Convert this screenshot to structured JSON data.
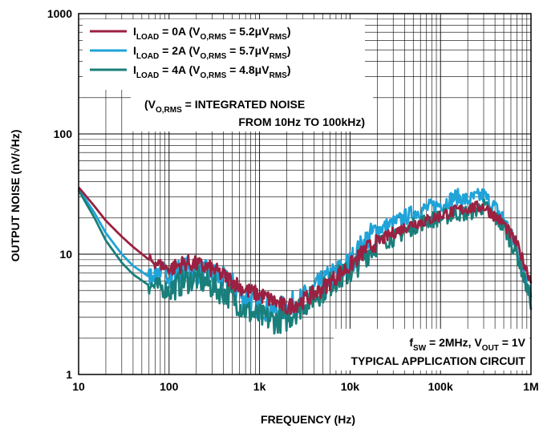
{
  "chart_data": {
    "type": "line",
    "title": "",
    "xlabel": "FREQUENCY (Hz)",
    "ylabel": "OUTPUT NOISE (nV/√Hz)",
    "x_scale": "log",
    "y_scale": "log",
    "xlim": [
      10,
      1000000
    ],
    "ylim": [
      1,
      1000
    ],
    "grid": true,
    "x_ticks": [
      "10",
      "100",
      "1k",
      "10k",
      "100k",
      "1M"
    ],
    "y_ticks": [
      "1",
      "10",
      "100",
      "1000"
    ],
    "legend_position": "top-left",
    "legend": [
      {
        "name": "I_LOAD = 0A (V_O,RMS = 5.2μV_RMS)",
        "color": "#9b2041",
        "sub": [
          [
            "I",
            "LOAD"
          ],
          [
            " = 0A (V",
            ""
          ],
          [
            "O,RMS",
            ""
          ],
          [
            " = 5.2μV",
            ""
          ],
          [
            "RMS",
            ""
          ],
          [
            ")",
            ""
          ]
        ]
      },
      {
        "name": "I_LOAD = 2A (V_O,RMS = 5.7μV_RMS)",
        "color": "#1fa3d8"
      },
      {
        "name": "I_LOAD = 4A (V_O,RMS = 4.8μV_RMS)",
        "color": "#1a7f7a"
      }
    ],
    "annotation_noise_line1": "(V",
    "annotation_noise_sub": "O,RMS",
    "annotation_noise_line1b": " = INTEGRATED NOISE",
    "annotation_noise_line2": "FROM 10Hz TO 100kHz)",
    "annotation_cond_line1_f": "f",
    "annotation_cond_line1_sw": "SW",
    "annotation_cond_line1_mid": " = 2MHz, V",
    "annotation_cond_line1_out": "OUT",
    "annotation_cond_line1_end": " = 1V",
    "annotation_cond_line2": "TYPICAL APPLICATION CIRCUIT",
    "series": [
      {
        "name": "I_LOAD = 0A",
        "color": "#9b2041",
        "x": [
          10,
          15,
          20,
          30,
          40,
          60,
          80,
          100,
          150,
          200,
          300,
          500,
          700,
          1000,
          1500,
          2000,
          3000,
          5000,
          7000,
          10000,
          15000,
          20000,
          30000,
          50000,
          70000,
          100000,
          150000,
          200000,
          300000,
          500000,
          700000,
          1000000
        ],
        "y": [
          36,
          25,
          19,
          14,
          11.5,
          9,
          8.2,
          7.5,
          8.5,
          8.2,
          7.5,
          6,
          5,
          4.6,
          4,
          3.6,
          4.1,
          5.2,
          6.5,
          8,
          11,
          12.5,
          15,
          18,
          19,
          21,
          23,
          24,
          25,
          18,
          12,
          6
        ]
      },
      {
        "name": "I_LOAD = 2A",
        "color": "#1fa3d8",
        "x": [
          10,
          15,
          20,
          30,
          40,
          60,
          80,
          100,
          150,
          200,
          300,
          500,
          700,
          1000,
          1500,
          2000,
          3000,
          5000,
          7000,
          10000,
          15000,
          20000,
          30000,
          50000,
          70000,
          100000,
          150000,
          200000,
          300000,
          500000,
          700000,
          1000000
        ],
        "y": [
          35,
          22,
          15,
          10,
          8,
          6.5,
          7.5,
          6.8,
          7.5,
          7.2,
          6.8,
          5.5,
          4.3,
          3.7,
          3.4,
          3.6,
          4.2,
          5.8,
          7,
          8.5,
          13,
          16,
          18,
          22,
          24,
          26,
          30,
          28,
          31,
          20,
          11,
          5
        ]
      },
      {
        "name": "I_LOAD = 4A",
        "color": "#1a7f7a",
        "x": [
          10,
          15,
          20,
          30,
          40,
          60,
          80,
          100,
          150,
          200,
          300,
          500,
          700,
          1000,
          1500,
          2000,
          3000,
          5000,
          7000,
          10000,
          15000,
          20000,
          30000,
          50000,
          70000,
          100000,
          150000,
          200000,
          300000,
          500000,
          700000,
          1000000
        ],
        "y": [
          34,
          20,
          13,
          8.5,
          6.8,
          5.5,
          5.3,
          5,
          6,
          6.3,
          5.4,
          4.4,
          3.4,
          3,
          2.8,
          2.9,
          3.8,
          5,
          6.2,
          7,
          10,
          12.5,
          13.5,
          17,
          19,
          20,
          22,
          22,
          25,
          17,
          10,
          4
        ]
      }
    ]
  }
}
